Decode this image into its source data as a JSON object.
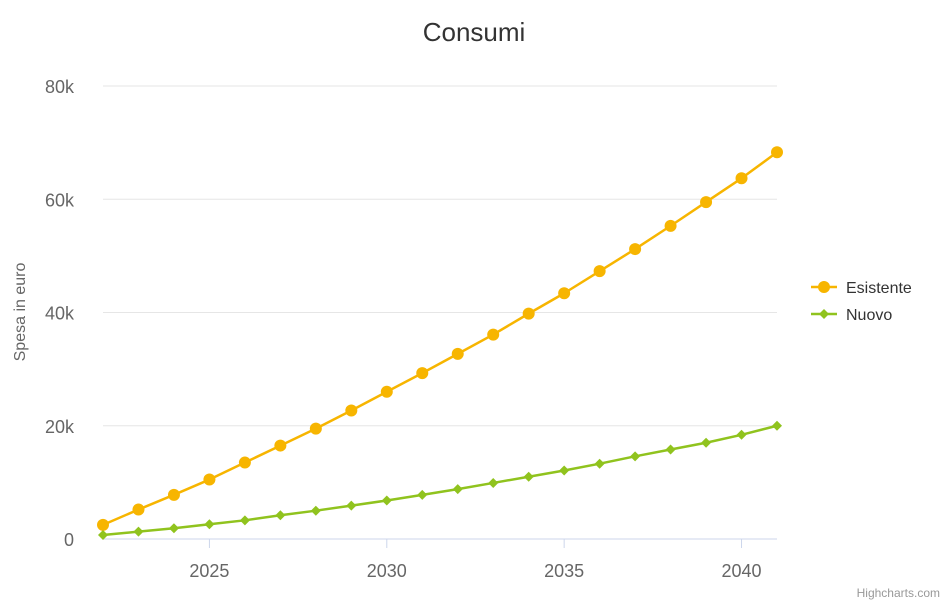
{
  "chart_data": {
    "type": "line",
    "title": "Consumi",
    "ylabel": "Spesa in euro",
    "xlabel": "",
    "xlim": [
      2022,
      2041
    ],
    "ylim": [
      0,
      80000
    ],
    "x_ticks": [
      "2025",
      "2030",
      "2035",
      "2040"
    ],
    "y_ticks": [
      "0",
      "20k",
      "40k",
      "60k",
      "80k"
    ],
    "grid": "horizontal",
    "legend_position": "right",
    "x": [
      2022,
      2023,
      2024,
      2025,
      2026,
      2027,
      2028,
      2029,
      2030,
      2031,
      2032,
      2033,
      2034,
      2035,
      2036,
      2037,
      2038,
      2039,
      2040,
      2041
    ],
    "series": [
      {
        "name": "Esistente",
        "color": "#f7b500",
        "marker": "circle",
        "values": [
          2500,
          5200,
          7800,
          10500,
          13500,
          16500,
          19500,
          22700,
          26000,
          29300,
          32700,
          36100,
          39800,
          43400,
          47300,
          51200,
          55300,
          59500,
          63700,
          68300
        ]
      },
      {
        "name": "Nuovo",
        "color": "#90c31e",
        "marker": "diamond",
        "values": [
          700,
          1300,
          1900,
          2600,
          3300,
          4200,
          5000,
          5900,
          6800,
          7800,
          8800,
          9900,
          11000,
          12100,
          13300,
          14600,
          15800,
          17000,
          18400,
          20000
        ]
      }
    ],
    "credits": "Highcharts.com"
  }
}
